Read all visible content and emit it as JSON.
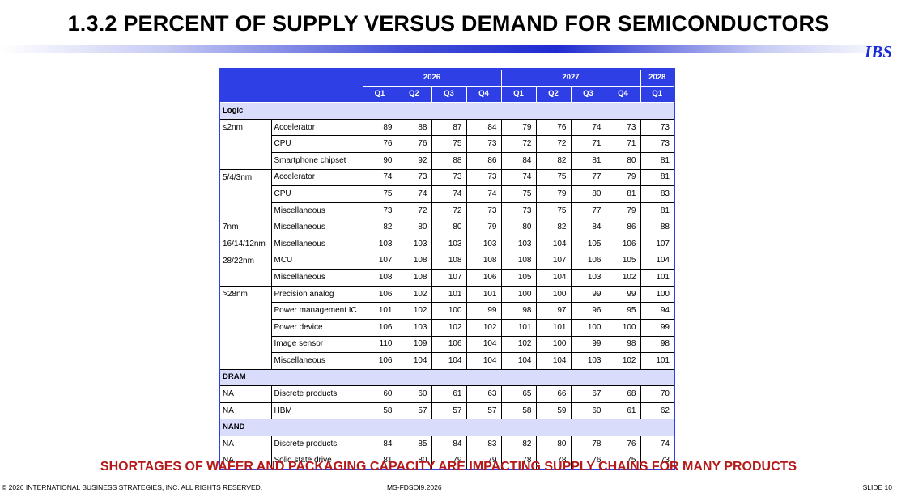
{
  "title": "1.3.2 PERCENT OF SUPPLY VERSUS DEMAND FOR SEMICONDUCTORS",
  "brand": "IBS",
  "table": {
    "year_headers": [
      {
        "label": "2026",
        "span": 4
      },
      {
        "label": "2027",
        "span": 4
      },
      {
        "label": "2028",
        "span": 1
      }
    ],
    "quarter_headers": [
      "Q1",
      "Q2",
      "Q3",
      "Q4",
      "Q1",
      "Q2",
      "Q3",
      "Q4",
      "Q1"
    ],
    "sections": [
      {
        "name": "Logic",
        "groups": [
          {
            "node": "≤2nm",
            "rows": [
              {
                "product": "Accelerator",
                "values": [
                  89,
                  88,
                  87,
                  84,
                  79,
                  76,
                  74,
                  73,
                  73
                ]
              },
              {
                "product": "CPU",
                "values": [
                  76,
                  76,
                  75,
                  73,
                  72,
                  72,
                  71,
                  71,
                  73
                ]
              },
              {
                "product": "Smartphone chipset",
                "values": [
                  90,
                  92,
                  88,
                  86,
                  84,
                  82,
                  81,
                  80,
                  81
                ]
              }
            ]
          },
          {
            "node": "5/4/3nm",
            "rows": [
              {
                "product": "Accelerator",
                "values": [
                  74,
                  73,
                  73,
                  73,
                  74,
                  75,
                  77,
                  79,
                  81
                ]
              },
              {
                "product": "CPU",
                "values": [
                  75,
                  74,
                  74,
                  74,
                  75,
                  79,
                  80,
                  81,
                  83
                ]
              },
              {
                "product": "Miscellaneous",
                "values": [
                  73,
                  72,
                  72,
                  73,
                  73,
                  75,
                  77,
                  79,
                  81
                ]
              }
            ]
          },
          {
            "node": "7nm",
            "rows": [
              {
                "product": "Miscellaneous",
                "values": [
                  82,
                  80,
                  80,
                  79,
                  80,
                  82,
                  84,
                  86,
                  88
                ]
              }
            ]
          },
          {
            "node": "16/14/12nm",
            "rows": [
              {
                "product": "Miscellaneous",
                "values": [
                  103,
                  103,
                  103,
                  103,
                  103,
                  104,
                  105,
                  106,
                  107
                ]
              }
            ]
          },
          {
            "node": "28/22nm",
            "rows": [
              {
                "product": "MCU",
                "values": [
                  107,
                  108,
                  108,
                  108,
                  108,
                  107,
                  106,
                  105,
                  104
                ]
              },
              {
                "product": "Miscellaneous",
                "values": [
                  108,
                  108,
                  107,
                  106,
                  105,
                  104,
                  103,
                  102,
                  101
                ]
              }
            ]
          },
          {
            "node": ">28nm",
            "rows": [
              {
                "product": "Precision analog",
                "values": [
                  106,
                  102,
                  101,
                  101,
                  100,
                  100,
                  99,
                  99,
                  100
                ]
              },
              {
                "product": "Power management IC",
                "values": [
                  101,
                  102,
                  100,
                  99,
                  98,
                  97,
                  96,
                  95,
                  94
                ]
              },
              {
                "product": "Power device",
                "values": [
                  106,
                  103,
                  102,
                  102,
                  101,
                  101,
                  100,
                  100,
                  99
                ]
              },
              {
                "product": "Image sensor",
                "values": [
                  110,
                  109,
                  106,
                  104,
                  102,
                  100,
                  99,
                  98,
                  98
                ]
              },
              {
                "product": "Miscellaneous",
                "values": [
                  106,
                  104,
                  104,
                  104,
                  104,
                  104,
                  103,
                  102,
                  101
                ]
              }
            ]
          }
        ]
      },
      {
        "name": "DRAM",
        "groups": [
          {
            "node": "NA",
            "rows": [
              {
                "product": "Discrete products",
                "values": [
                  60,
                  60,
                  61,
                  63,
                  65,
                  66,
                  67,
                  68,
                  70
                ]
              }
            ]
          },
          {
            "node": "NA",
            "rows": [
              {
                "product": "HBM",
                "values": [
                  58,
                  57,
                  57,
                  57,
                  58,
                  59,
                  60,
                  61,
                  62
                ]
              }
            ]
          }
        ]
      },
      {
        "name": "NAND",
        "groups": [
          {
            "node": "NA",
            "rows": [
              {
                "product": "Discrete products",
                "values": [
                  84,
                  85,
                  84,
                  83,
                  82,
                  80,
                  78,
                  76,
                  74
                ]
              }
            ]
          },
          {
            "node": "NA",
            "rows": [
              {
                "product": "Solid state drive",
                "values": [
                  81,
                  80,
                  79,
                  79,
                  78,
                  78,
                  76,
                  75,
                  73
                ]
              }
            ]
          }
        ]
      }
    ]
  },
  "tagline": "SHORTAGES OF WAFER AND PACKAGING CAPACITY ARE IMPACTING SUPPLY CHAINS FOR MANY PRODUCTS",
  "footer": {
    "copyright": "© 2026 INTERNATIONAL BUSINESS STRATEGIES, INC. ALL RIGHTS RESERVED.",
    "doc_id": "MS-FDSOI9.2026",
    "slide": "SLIDE 10"
  },
  "colors": {
    "header_blue": "#2f3fe6",
    "section_band": "#d9dcfb",
    "tagline_red": "#b51a1a",
    "brand_blue": "#1a2ad8"
  }
}
